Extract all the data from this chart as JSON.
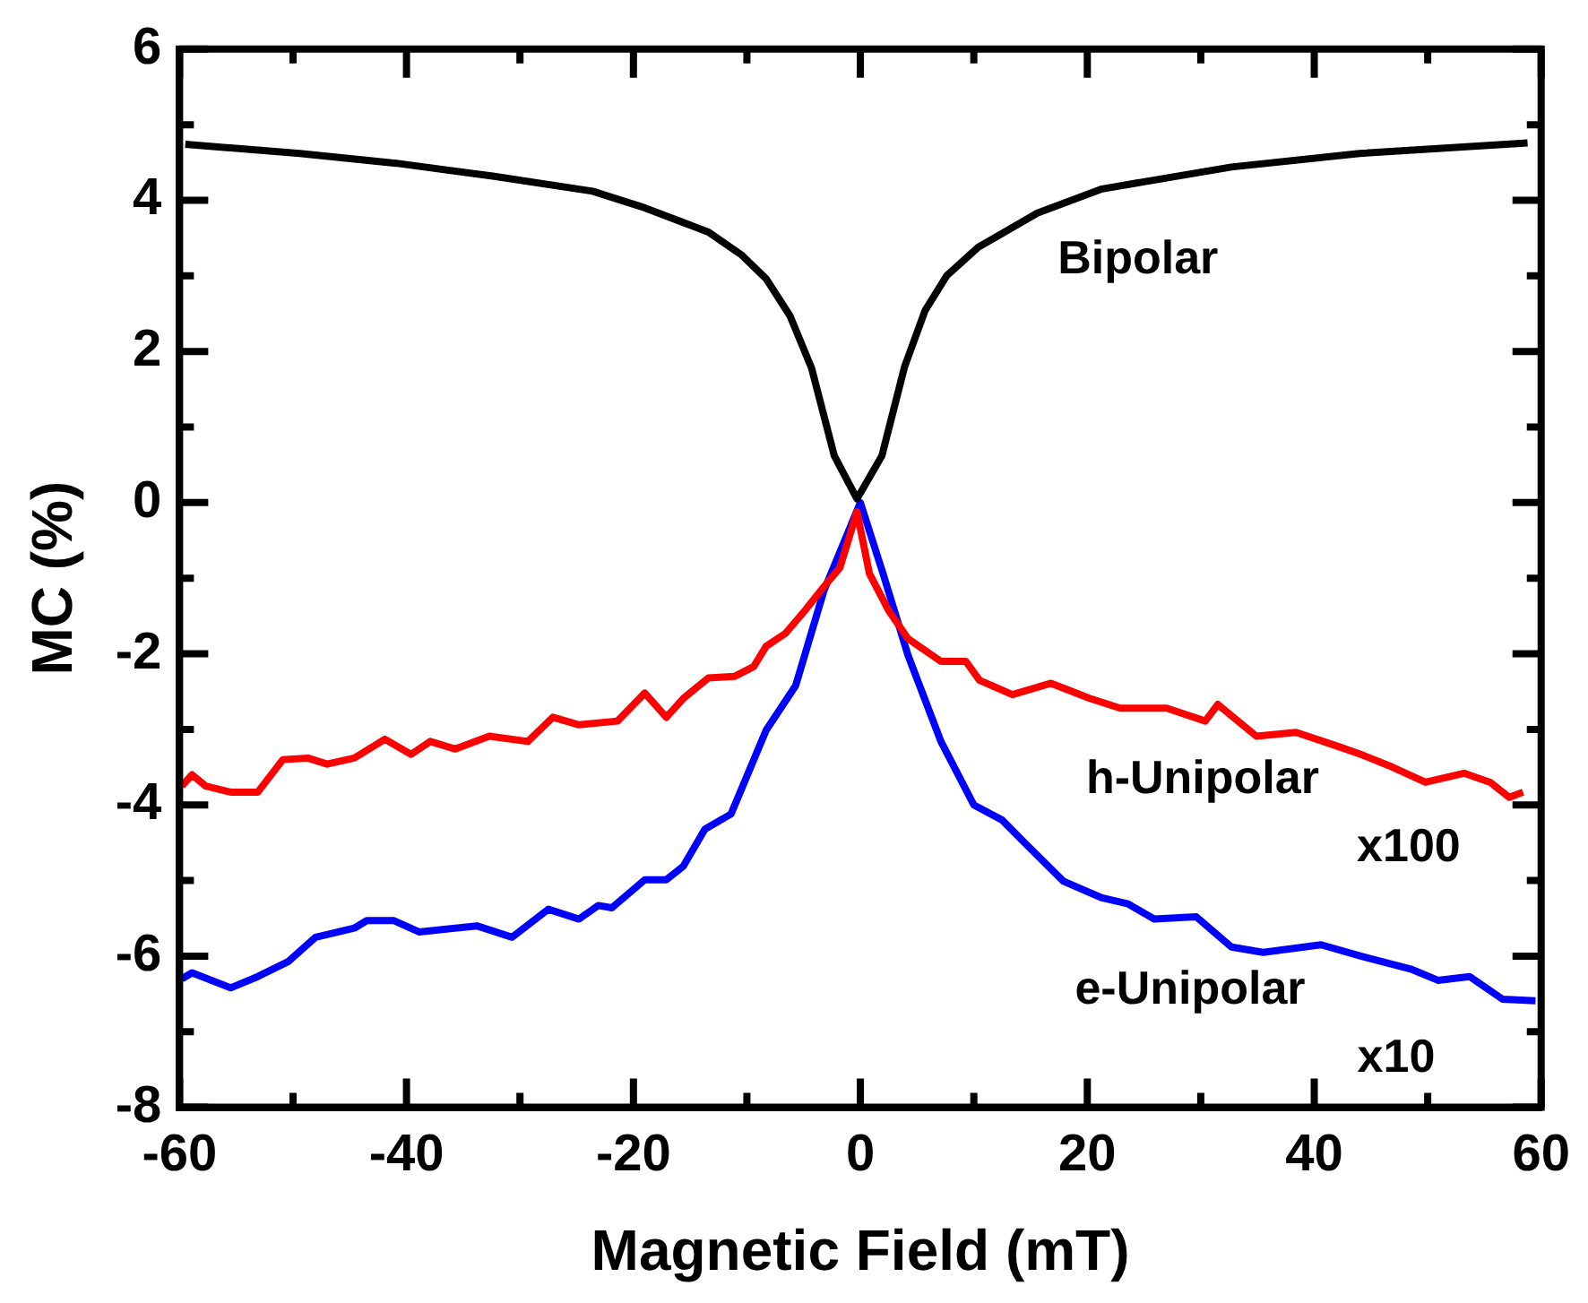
{
  "chart_data": {
    "type": "line",
    "xlabel": "Magnetic Field (mT)",
    "ylabel": "MC (%)",
    "xlim": [
      -60,
      60
    ],
    "ylim": [
      -8,
      6
    ],
    "xticks": [
      -60,
      {
        "value": -50,
        "label": null
      },
      -40,
      {
        "value": -30,
        "label": null
      },
      -20,
      {
        "value": -10,
        "label": null
      },
      0,
      {
        "value": 10,
        "label": null
      },
      20,
      {
        "value": 30,
        "label": null
      },
      40,
      {
        "value": 50,
        "label": null
      },
      60
    ],
    "yticks": [
      -8,
      {
        "value": -7,
        "label": null
      },
      -6,
      {
        "value": -5,
        "label": null
      },
      -4,
      {
        "value": -3,
        "label": null
      },
      -2,
      {
        "value": -1,
        "label": null
      },
      0,
      {
        "value": 1,
        "label": null
      },
      2,
      {
        "value": 3,
        "label": null
      },
      4,
      {
        "value": 5,
        "label": null
      },
      6
    ],
    "grid": false,
    "legend": false,
    "marker": "none",
    "line_style": "solid",
    "series": [
      {
        "name": "Bipolar",
        "color": "#000000",
        "x": [
          -59.5,
          -49.4,
          -40.9,
          -32.4,
          -23.6,
          -19,
          -13.4,
          -10.5,
          -8.3,
          -6.2,
          -4.3,
          -2.3,
          -0.3,
          1.9,
          3.9,
          5.7,
          7.6,
          10.4,
          15.6,
          21.3,
          32.7,
          44,
          58.8
        ],
        "values": [
          4.74,
          4.62,
          4.49,
          4.32,
          4.12,
          3.9,
          3.58,
          3.28,
          2.96,
          2.47,
          1.78,
          0.62,
          0.05,
          0.62,
          1.8,
          2.54,
          3.0,
          3.38,
          3.83,
          4.15,
          4.44,
          4.62,
          4.76
        ]
      },
      {
        "name": "h-Unipolar",
        "color": "#ff0000",
        "x": [
          -59.8,
          -58.9,
          -57.7,
          -55.5,
          -53.1,
          -50.9,
          -48.7,
          -47,
          -44.6,
          -41.9,
          -39.6,
          -37.9,
          -35.7,
          -32.7,
          -29.3,
          -27.1,
          -24.8,
          -21.4,
          -19,
          -17.1,
          -15.6,
          -13.4,
          -11.1,
          -9.4,
          -8.3,
          -6.6,
          -4.9,
          -3.2,
          -1.8,
          -0.3,
          0.8,
          2.5,
          4.2,
          7.1,
          9.3,
          10.5,
          13.4,
          16.8,
          20.2,
          22.9,
          27,
          30.4,
          31.5,
          34.9,
          38.4,
          41.8,
          44.1,
          46.9,
          49.8,
          53.2,
          55.5,
          57.2,
          58.4
        ],
        "values": [
          -3.75,
          -3.6,
          -3.75,
          -3.83,
          -3.83,
          -3.4,
          -3.38,
          -3.46,
          -3.38,
          -3.13,
          -3.33,
          -3.16,
          -3.26,
          -3.09,
          -3.16,
          -2.84,
          -2.94,
          -2.89,
          -2.52,
          -2.84,
          -2.59,
          -2.32,
          -2.3,
          -2.17,
          -1.9,
          -1.73,
          -1.43,
          -1.11,
          -0.86,
          -0.12,
          -0.94,
          -1.43,
          -1.8,
          -2.1,
          -2.1,
          -2.35,
          -2.54,
          -2.39,
          -2.59,
          -2.72,
          -2.72,
          -2.89,
          -2.67,
          -3.09,
          -3.04,
          -3.21,
          -3.33,
          -3.5,
          -3.7,
          -3.58,
          -3.7,
          -3.9,
          -3.83
        ]
      },
      {
        "name": "e-Unipolar",
        "color": "#0000ff",
        "x": [
          -59.8,
          -58.9,
          -55.5,
          -53.1,
          -50.4,
          -48,
          -44.6,
          -43.5,
          -41.1,
          -38.9,
          -33.8,
          -30.7,
          -27.5,
          -24.8,
          -23.1,
          -21.9,
          -19,
          -17.1,
          -15.6,
          -13.7,
          -11.4,
          -8.3,
          -5.7,
          -3.2,
          0,
          2,
          4.2,
          7.1,
          10,
          12.5,
          14.4,
          17.9,
          21.3,
          23.6,
          25.9,
          29.6,
          32.7,
          35.5,
          40.6,
          44.1,
          48.5,
          50.9,
          53.7,
          56.6,
          59.5
        ],
        "values": [
          -6.3,
          -6.22,
          -6.42,
          -6.27,
          -6.07,
          -5.75,
          -5.63,
          -5.53,
          -5.53,
          -5.68,
          -5.6,
          -5.75,
          -5.38,
          -5.51,
          -5.33,
          -5.36,
          -4.99,
          -4.99,
          -4.81,
          -4.32,
          -4.12,
          -3.01,
          -2.42,
          -1.16,
          0,
          -0.94,
          -2.02,
          -3.16,
          -4,
          -4.2,
          -4.49,
          -5.01,
          -5.23,
          -5.31,
          -5.51,
          -5.48,
          -5.88,
          -5.95,
          -5.85,
          -6,
          -6.17,
          -6.32,
          -6.27,
          -6.57,
          -6.59
        ]
      }
    ],
    "annotations": [
      "x100",
      "x10"
    ]
  }
}
